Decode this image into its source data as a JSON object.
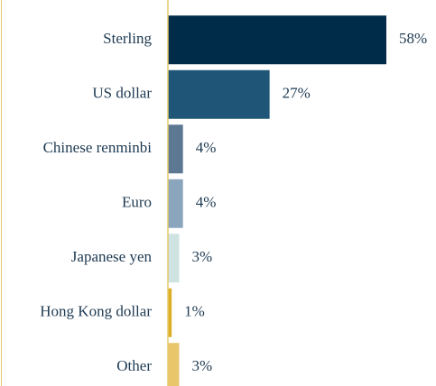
{
  "chart_data": {
    "type": "barh",
    "categories": [
      "Sterling",
      "US dollar",
      "Chinese renminbi",
      "Euro",
      "Japanese yen",
      "Hong Kong dollar",
      "Other"
    ],
    "values": [
      58,
      27,
      4,
      4,
      3,
      1,
      3
    ],
    "value_labels": [
      "58%",
      "27%",
      "4%",
      "4%",
      "3%",
      "1%",
      "3%"
    ],
    "colors": [
      "#002b49",
      "#1f5677",
      "#5d7893",
      "#8ba5bd",
      "#cfe3e3",
      "#dcae24",
      "#e9c66c"
    ]
  }
}
